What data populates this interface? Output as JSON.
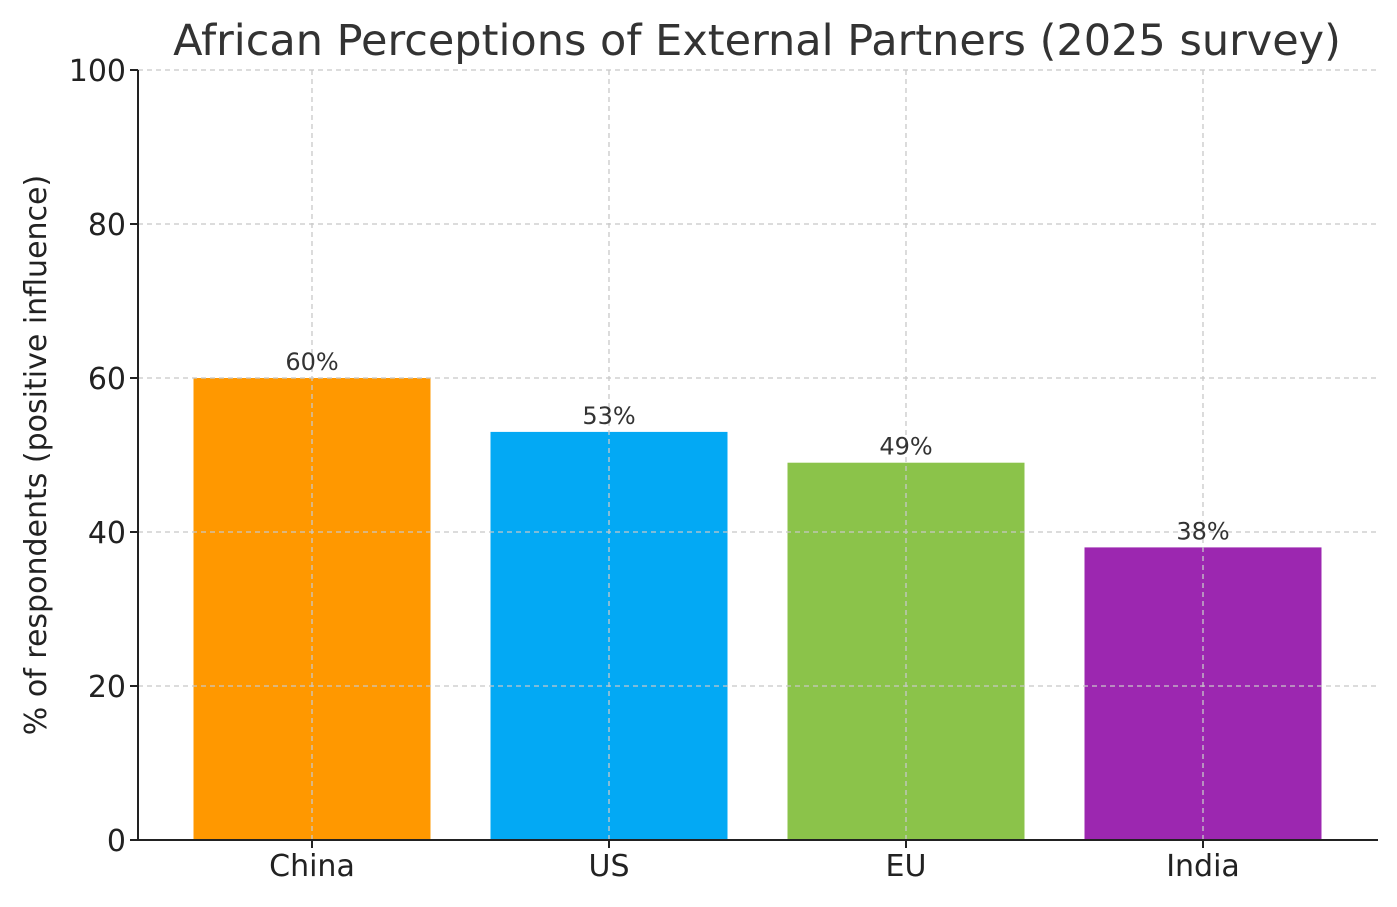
{
  "chart_data": {
    "type": "bar",
    "title": "African Perceptions of External Partners (2025 survey)",
    "xlabel": "",
    "ylabel": "% of respondents (positive influence)",
    "categories": [
      "China",
      "US",
      "EU",
      "India"
    ],
    "values": [
      60,
      53,
      49,
      38
    ],
    "data_labels": [
      "60%",
      "53%",
      "49%",
      "38%"
    ],
    "colors": [
      "#FF9800",
      "#03A9F4",
      "#8BC34A",
      "#9C27B0"
    ],
    "ylim": [
      0,
      100
    ],
    "yticks": [
      0,
      20,
      40,
      60,
      80,
      100
    ],
    "ytick_labels": [
      "0",
      "20",
      "40",
      "60",
      "80",
      "100"
    ],
    "grid": true,
    "legend": "none"
  }
}
